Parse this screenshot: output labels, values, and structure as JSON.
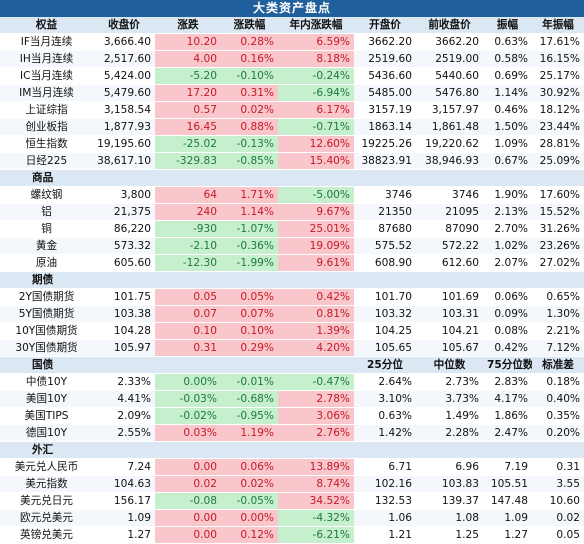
{
  "title": "大类资产盘点",
  "columns": [
    "权益",
    "收盘价",
    "涨跌",
    "涨跌幅",
    "年内涨跌幅",
    "开盘价",
    "前收盘价",
    "振幅",
    "年振幅"
  ],
  "sections": [
    {
      "header": true,
      "rows": [
        {
          "name": "IF当月连续",
          "vals": [
            "3,666.40",
            "10.20",
            "0.28%",
            "6.59%",
            "3662.20",
            "3662.20",
            "0.63%",
            "17.61%"
          ],
          "dir": [
            "",
            "up",
            "up",
            "up",
            "",
            "",
            "",
            ""
          ]
        },
        {
          "name": "IH当月连续",
          "vals": [
            "2,517.60",
            "4.00",
            "0.16%",
            "8.18%",
            "2519.60",
            "2519.00",
            "0.58%",
            "16.15%"
          ],
          "dir": [
            "",
            "up",
            "up",
            "up",
            "",
            "",
            "",
            ""
          ]
        },
        {
          "name": "IC当月连续",
          "vals": [
            "5,424.00",
            "-5.20",
            "-0.10%",
            "-0.24%",
            "5436.60",
            "5440.60",
            "0.69%",
            "25.17%"
          ],
          "dir": [
            "",
            "dn",
            "dn",
            "dn",
            "",
            "",
            "",
            ""
          ]
        },
        {
          "name": "IM当月连续",
          "vals": [
            "5,479.60",
            "17.20",
            "0.31%",
            "-6.94%",
            "5485.00",
            "5476.80",
            "1.14%",
            "30.92%"
          ],
          "dir": [
            "",
            "up",
            "up",
            "dn",
            "",
            "",
            "",
            ""
          ]
        },
        {
          "name": "上证综指",
          "vals": [
            "3,158.54",
            "0.57",
            "0.02%",
            "6.17%",
            "3157.19",
            "3,157.97",
            "0.46%",
            "18.12%"
          ],
          "dir": [
            "",
            "up",
            "up",
            "up",
            "",
            "",
            "",
            ""
          ]
        },
        {
          "name": "创业板指",
          "vals": [
            "1,877.93",
            "16.45",
            "0.88%",
            "-0.71%",
            "1863.14",
            "1,861.48",
            "1.50%",
            "23.44%"
          ],
          "dir": [
            "",
            "up",
            "up",
            "dn",
            "",
            "",
            "",
            ""
          ]
        },
        {
          "name": "恒生指数",
          "vals": [
            "19,195.60",
            "-25.02",
            "-0.13%",
            "12.60%",
            "19225.26",
            "19,220.62",
            "1.09%",
            "28.81%"
          ],
          "dir": [
            "",
            "dn",
            "dn",
            "up",
            "",
            "",
            "",
            ""
          ]
        },
        {
          "name": "日经225",
          "vals": [
            "38,617.10",
            "-329.83",
            "-0.85%",
            "15.40%",
            "38823.91",
            "38,946.93",
            "0.67%",
            "25.09%"
          ],
          "dir": [
            "",
            "dn",
            "dn",
            "up",
            "",
            "",
            "",
            ""
          ]
        }
      ]
    },
    {
      "label": "商品",
      "sub": [
        "",
        "",
        "",
        "",
        "",
        "",
        "",
        ""
      ],
      "rows": [
        {
          "name": "螺纹钢",
          "vals": [
            "3,800",
            "64",
            "1.71%",
            "-5.00%",
            "3746",
            "3746",
            "1.90%",
            "17.60%"
          ],
          "dir": [
            "",
            "up",
            "up",
            "dn",
            "",
            "",
            "",
            ""
          ]
        },
        {
          "name": "铝",
          "vals": [
            "21,375",
            "240",
            "1.14%",
            "9.67%",
            "21350",
            "21095",
            "2.13%",
            "15.52%"
          ],
          "dir": [
            "",
            "up",
            "up",
            "up",
            "",
            "",
            "",
            ""
          ]
        },
        {
          "name": "铜",
          "vals": [
            "86,220",
            "-930",
            "-1.07%",
            "25.01%",
            "87680",
            "87090",
            "2.70%",
            "31.26%"
          ],
          "dir": [
            "",
            "dn",
            "dn",
            "up",
            "",
            "",
            "",
            ""
          ]
        },
        {
          "name": "黄金",
          "vals": [
            "573.32",
            "-2.10",
            "-0.36%",
            "19.09%",
            "575.52",
            "572.22",
            "1.02%",
            "23.26%"
          ],
          "dir": [
            "",
            "dn",
            "dn",
            "up",
            "",
            "",
            "",
            ""
          ]
        },
        {
          "name": "原油",
          "vals": [
            "605.60",
            "-12.30",
            "-1.99%",
            "9.61%",
            "608.90",
            "612.60",
            "2.07%",
            "27.02%"
          ],
          "dir": [
            "",
            "dn",
            "dn",
            "up",
            "",
            "",
            "",
            ""
          ]
        }
      ]
    },
    {
      "label": "期债",
      "sub": [
        "",
        "",
        "",
        "",
        "",
        "",
        "",
        ""
      ],
      "rows": [
        {
          "name": "2Y国债期货",
          "vals": [
            "101.75",
            "0.05",
            "0.05%",
            "0.42%",
            "101.70",
            "101.69",
            "0.06%",
            "0.65%"
          ],
          "dir": [
            "",
            "up",
            "up",
            "up",
            "",
            "",
            "",
            ""
          ]
        },
        {
          "name": "5Y国债期货",
          "vals": [
            "103.38",
            "0.07",
            "0.07%",
            "0.81%",
            "103.32",
            "103.31",
            "0.09%",
            "1.30%"
          ],
          "dir": [
            "",
            "up",
            "up",
            "up",
            "",
            "",
            "",
            ""
          ]
        },
        {
          "name": "10Y国债期货",
          "vals": [
            "104.28",
            "0.10",
            "0.10%",
            "1.39%",
            "104.25",
            "104.21",
            "0.08%",
            "2.21%"
          ],
          "dir": [
            "",
            "up",
            "up",
            "up",
            "",
            "",
            "",
            ""
          ]
        },
        {
          "name": "30Y国债期货",
          "vals": [
            "105.97",
            "0.31",
            "0.29%",
            "4.20%",
            "105.65",
            "105.67",
            "0.42%",
            "7.12%"
          ],
          "dir": [
            "",
            "up",
            "up",
            "up",
            "",
            "",
            "",
            ""
          ]
        }
      ]
    },
    {
      "label": "国债",
      "sub": [
        "",
        "",
        "",
        "",
        "25分位",
        "中位数",
        "75分位数",
        "标准差"
      ],
      "rows": [
        {
          "name": "中债10Y",
          "vals": [
            "2.33%",
            "0.00%",
            "-0.01%",
            "-0.47%",
            "2.64%",
            "2.73%",
            "2.83%",
            "0.18%"
          ],
          "dir": [
            "",
            "dn",
            "dn",
            "dn",
            "",
            "",
            "",
            ""
          ]
        },
        {
          "name": "美国10Y",
          "vals": [
            "4.41%",
            "-0.03%",
            "-0.68%",
            "2.78%",
            "3.10%",
            "3.73%",
            "4.17%",
            "0.40%"
          ],
          "dir": [
            "",
            "dn",
            "dn",
            "up",
            "",
            "",
            "",
            ""
          ]
        },
        {
          "name": "美国TIPS",
          "vals": [
            "2.09%",
            "-0.02%",
            "-0.95%",
            "3.06%",
            "0.63%",
            "1.49%",
            "1.86%",
            "0.35%"
          ],
          "dir": [
            "",
            "dn",
            "dn",
            "up",
            "",
            "",
            "",
            ""
          ]
        },
        {
          "name": "德国10Y",
          "vals": [
            "2.55%",
            "0.03%",
            "1.19%",
            "2.76%",
            "1.42%",
            "2.28%",
            "2.47%",
            "0.20%"
          ],
          "dir": [
            "",
            "up",
            "up",
            "up",
            "",
            "",
            "",
            ""
          ]
        }
      ]
    },
    {
      "label": "外汇",
      "sub": [
        "",
        "",
        "",
        "",
        "",
        "",
        "",
        ""
      ],
      "rows": [
        {
          "name": "美元兑人民币",
          "vals": [
            "7.24",
            "0.00",
            "0.06%",
            "13.89%",
            "6.71",
            "6.96",
            "7.19",
            "0.31"
          ],
          "dir": [
            "",
            "up",
            "up",
            "up",
            "",
            "",
            "",
            ""
          ]
        },
        {
          "name": "美元指数",
          "vals": [
            "104.63",
            "0.02",
            "0.02%",
            "8.74%",
            "102.16",
            "103.83",
            "105.51",
            "3.55"
          ],
          "dir": [
            "",
            "up",
            "up",
            "up",
            "",
            "",
            "",
            ""
          ]
        },
        {
          "name": "美元兑日元",
          "vals": [
            "156.17",
            "-0.08",
            "-0.05%",
            "34.52%",
            "132.53",
            "139.37",
            "147.48",
            "10.60"
          ],
          "dir": [
            "",
            "dn",
            "dn",
            "up",
            "",
            "",
            "",
            ""
          ]
        },
        {
          "name": "欧元兑美元",
          "vals": [
            "1.09",
            "0.00",
            "0.00%",
            "-4.32%",
            "1.06",
            "1.08",
            "1.09",
            "0.02"
          ],
          "dir": [
            "",
            "up",
            "up",
            "dn",
            "",
            "",
            "",
            ""
          ]
        },
        {
          "name": "英镑兑美元",
          "vals": [
            "1.27",
            "0.00",
            "0.12%",
            "-6.21%",
            "1.21",
            "1.25",
            "1.27",
            "0.05"
          ],
          "dir": [
            "",
            "up",
            "up",
            "dn",
            "",
            "",
            "",
            ""
          ]
        }
      ]
    }
  ]
}
